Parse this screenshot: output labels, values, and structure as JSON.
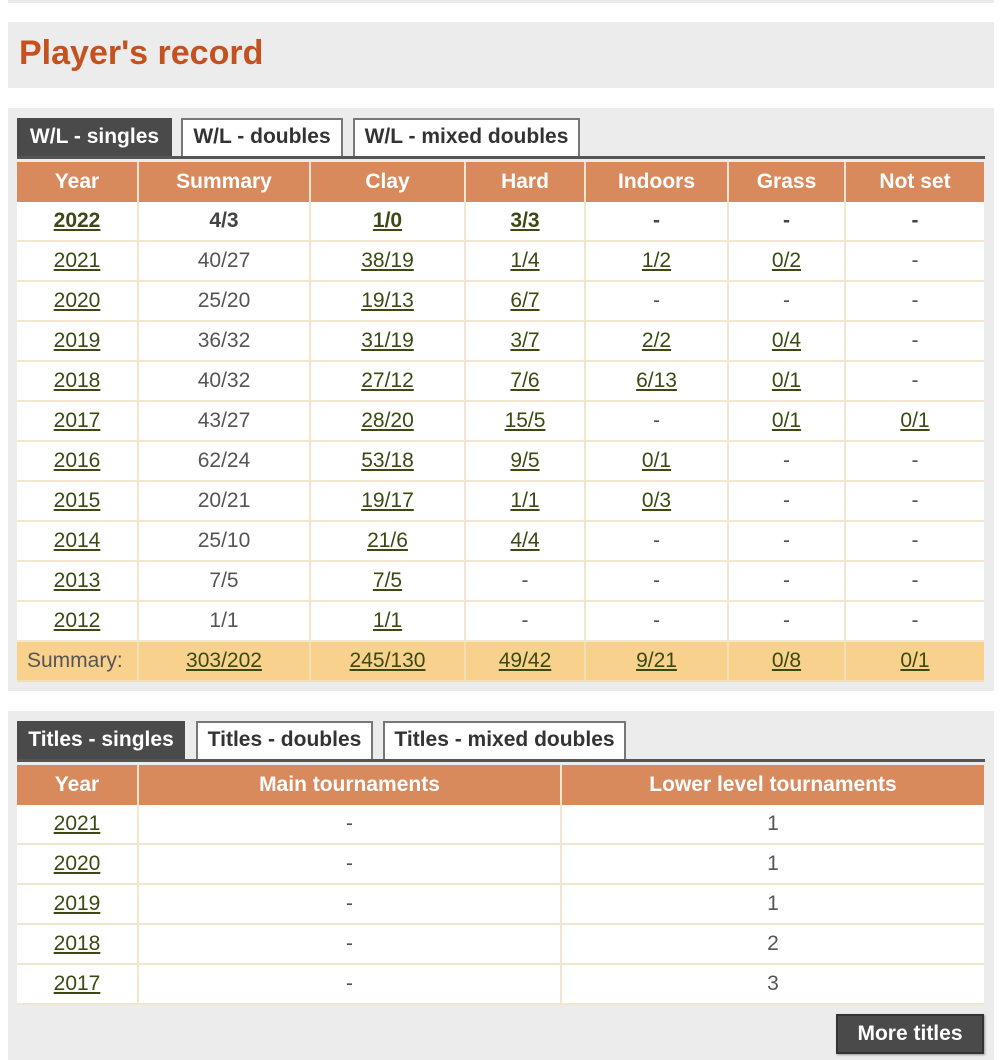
{
  "page_title": "Player's record",
  "wl": {
    "tabs": [
      "W/L - singles",
      "W/L - doubles",
      "W/L - mixed doubles"
    ],
    "headers": [
      "Year",
      "Summary",
      "Clay",
      "Hard",
      "Indoors",
      "Grass",
      "Not set"
    ],
    "rows": [
      [
        "2022",
        "4/3",
        "1/0",
        "3/3",
        "-",
        "-",
        "-"
      ],
      [
        "2021",
        "40/27",
        "38/19",
        "1/4",
        "1/2",
        "0/2",
        "-"
      ],
      [
        "2020",
        "25/20",
        "19/13",
        "6/7",
        "-",
        "-",
        "-"
      ],
      [
        "2019",
        "36/32",
        "31/19",
        "3/7",
        "2/2",
        "0/4",
        "-"
      ],
      [
        "2018",
        "40/32",
        "27/12",
        "7/6",
        "6/13",
        "0/1",
        "-"
      ],
      [
        "2017",
        "43/27",
        "28/20",
        "15/5",
        "-",
        "0/1",
        "0/1"
      ],
      [
        "2016",
        "62/24",
        "53/18",
        "9/5",
        "0/1",
        "-",
        "-"
      ],
      [
        "2015",
        "20/21",
        "19/17",
        "1/1",
        "0/3",
        "-",
        "-"
      ],
      [
        "2014",
        "25/10",
        "21/6",
        "4/4",
        "-",
        "-",
        "-"
      ],
      [
        "2013",
        "7/5",
        "7/5",
        "-",
        "-",
        "-",
        "-"
      ],
      [
        "2012",
        "1/1",
        "1/1",
        "-",
        "-",
        "-",
        "-"
      ]
    ],
    "summary": [
      "Summary:",
      "303/202",
      "245/130",
      "49/42",
      "9/21",
      "0/8",
      "0/1"
    ]
  },
  "titles": {
    "tabs": [
      "Titles - singles",
      "Titles - doubles",
      "Titles - mixed doubles"
    ],
    "headers": [
      "Year",
      "Main tournaments",
      "Lower level tournaments"
    ],
    "rows": [
      [
        "2021",
        "-",
        "1"
      ],
      [
        "2020",
        "-",
        "1"
      ],
      [
        "2019",
        "-",
        "1"
      ],
      [
        "2018",
        "-",
        "2"
      ],
      [
        "2017",
        "-",
        "3"
      ]
    ],
    "more_label": "More titles"
  },
  "colors": {
    "accent_title": "#c4521f",
    "header_bg": "#d98a5d",
    "summary_bg": "#f8d28d",
    "link": "#3a4a12",
    "tab_active": "#4a4a4a"
  }
}
